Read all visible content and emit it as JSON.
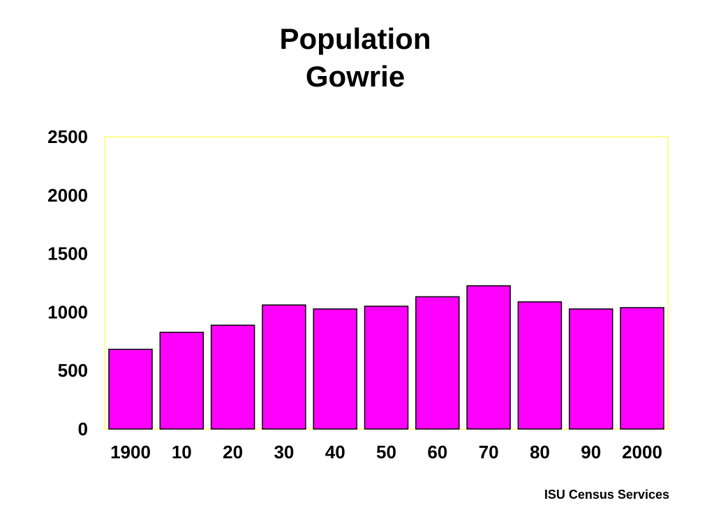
{
  "chart_data": {
    "type": "bar",
    "title": [
      "Population",
      "Gowrie"
    ],
    "categories": [
      "1900",
      "10",
      "20",
      "30",
      "40",
      "50",
      "60",
      "70",
      "80",
      "90",
      "2000"
    ],
    "values": [
      682,
      827,
      888,
      1061,
      1027,
      1050,
      1131,
      1225,
      1088,
      1027,
      1038
    ],
    "ylim": [
      0,
      2500
    ],
    "yticks": [
      0,
      500,
      1000,
      1500,
      2000,
      2500
    ],
    "grid": false,
    "legend": "none"
  },
  "colors": {
    "bar_fill": "#FF00FF",
    "bar_stroke": "#000000",
    "plot_border": "#FFFF66"
  },
  "source": "ISU Census Services"
}
